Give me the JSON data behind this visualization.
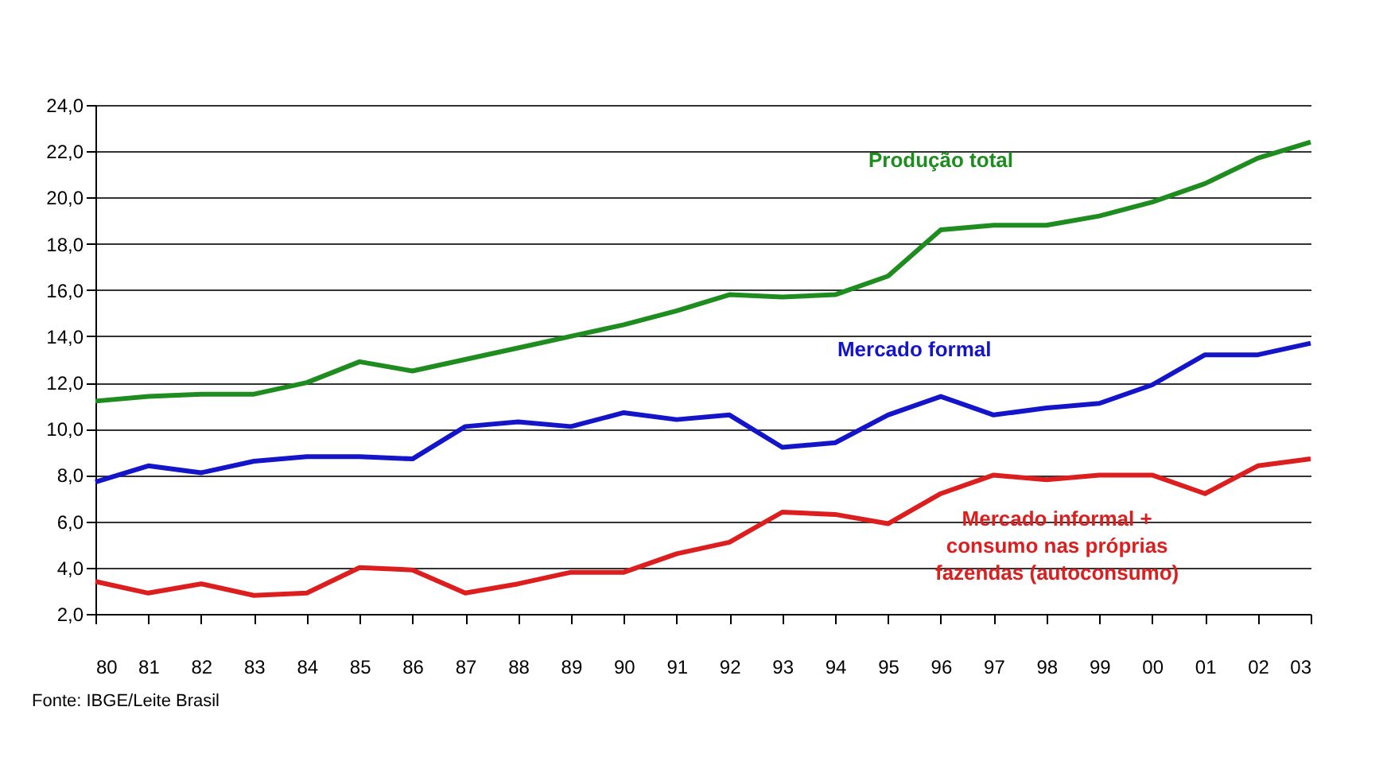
{
  "chart_data": {
    "type": "line",
    "categories": [
      "80",
      "81",
      "82",
      "83",
      "84",
      "85",
      "86",
      "87",
      "88",
      "89",
      "90",
      "91",
      "92",
      "93",
      "94",
      "95",
      "96",
      "97",
      "98",
      "99",
      "00",
      "01",
      "02",
      "03"
    ],
    "series": [
      {
        "name": "Produção total",
        "color": "#1e8c1e",
        "values": [
          11.2,
          11.4,
          11.5,
          11.5,
          12.0,
          12.9,
          12.5,
          13.0,
          13.5,
          14.0,
          14.5,
          15.1,
          15.8,
          15.7,
          15.8,
          16.6,
          18.6,
          18.8,
          18.8,
          19.2,
          19.8,
          20.6,
          21.7,
          22.4
        ]
      },
      {
        "name": "Mercado formal",
        "color": "#1414c8",
        "values": [
          7.7,
          8.4,
          8.1,
          8.6,
          8.8,
          8.8,
          8.7,
          10.1,
          10.3,
          10.1,
          10.7,
          10.4,
          10.6,
          9.2,
          9.4,
          10.6,
          11.4,
          10.6,
          10.9,
          11.1,
          11.9,
          13.2,
          13.2,
          13.7
        ]
      },
      {
        "name": "Mercado informal +\nconsumo nas próprias\nfazendas (autoconsumo)",
        "color": "#dc1e1e",
        "values": [
          3.4,
          2.9,
          3.3,
          2.8,
          2.9,
          4.0,
          3.9,
          2.9,
          3.3,
          3.8,
          3.8,
          4.6,
          5.1,
          6.4,
          6.3,
          5.9,
          7.2,
          8.0,
          7.8,
          8.0,
          8.0,
          7.2,
          8.4,
          8.7
        ]
      }
    ],
    "ylim": [
      2,
      24
    ],
    "yticks": [
      {
        "value": 2,
        "label": "2,0"
      },
      {
        "value": 4,
        "label": "4,0"
      },
      {
        "value": 6,
        "label": "6,0"
      },
      {
        "value": 8,
        "label": "8,0"
      },
      {
        "value": 10,
        "label": "10,0"
      },
      {
        "value": 12,
        "label": "12,0"
      },
      {
        "value": 14,
        "label": "14,0"
      },
      {
        "value": 16,
        "label": "16,0"
      },
      {
        "value": 18,
        "label": "18,0"
      },
      {
        "value": 20,
        "label": "20,0"
      },
      {
        "value": 22,
        "label": "22,0"
      },
      {
        "value": 24,
        "label": "24,0"
      }
    ],
    "grid": "y",
    "marker": "none",
    "line_style": "solid",
    "annotations": [
      "Fonte: IBGE/Leite Brasil"
    ]
  }
}
